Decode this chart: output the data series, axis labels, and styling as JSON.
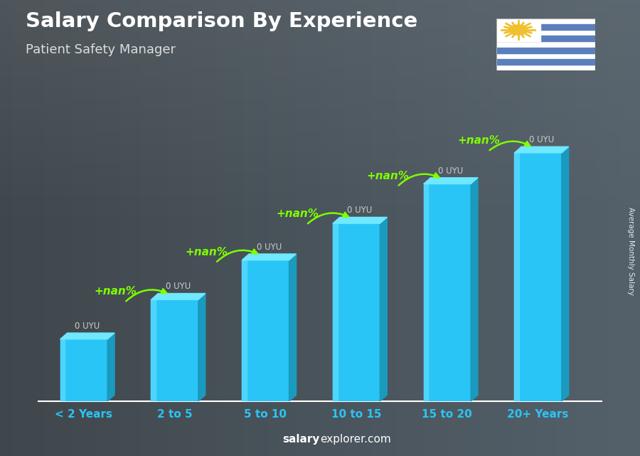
{
  "title": "Salary Comparison By Experience",
  "subtitle": "Patient Safety Manager",
  "categories": [
    "< 2 Years",
    "2 to 5",
    "5 to 10",
    "10 to 15",
    "15 to 20",
    "20+ Years"
  ],
  "value_labels": [
    "0 UYU",
    "0 UYU",
    "0 UYU",
    "0 UYU",
    "0 UYU",
    "0 UYU"
  ],
  "pct_labels": [
    "+nan%",
    "+nan%",
    "+nan%",
    "+nan%",
    "+nan%"
  ],
  "bar_color_main": "#29c5f6",
  "bar_color_light": "#55d8ff",
  "bar_color_dark": "#1a9abf",
  "bar_color_top": "#70e8ff",
  "background_color": "#4a4a4a",
  "title_color": "#ffffff",
  "subtitle_color": "#dddddd",
  "xlabel_color": "#29c5f6",
  "value_label_color": "#cccccc",
  "green_color": "#7fff00",
  "footer_text_bold": "salary",
  "footer_text_normal": "explorer.com",
  "ylabel": "Average Monthly Salary",
  "bar_heights": [
    0.22,
    0.36,
    0.5,
    0.63,
    0.77,
    0.88
  ],
  "ylim": [
    0,
    1.05
  ],
  "flag_blue": "#5b7fbc",
  "flag_gold": "#f0c030"
}
